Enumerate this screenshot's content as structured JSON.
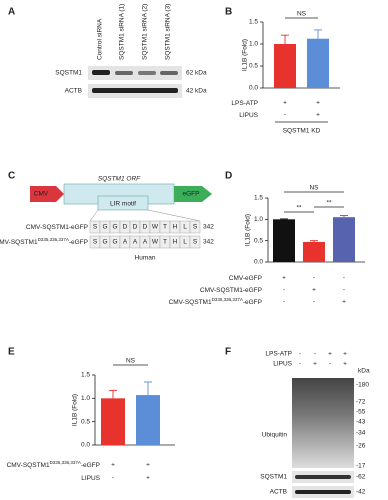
{
  "panel_a": {
    "letter": "A",
    "lanes": [
      "Control siRNA",
      "SQSTM1 siRNA (1)",
      "SQSTM1 siRNA (2)",
      "SQSTM1 siRNA (3)"
    ],
    "blots": [
      {
        "label": "SQSTM1",
        "size": "62 kDa"
      },
      {
        "label": "ACTB",
        "size": "42 kDa"
      }
    ]
  },
  "panel_c": {
    "letter": "C",
    "promoter": "CMV",
    "orf": "SQSTM1 ORF",
    "motif": "LIR motif",
    "tag": "eGFP",
    "sequences": [
      {
        "label": {
          "pre": "CMV-SQSTM1-eGFP",
          "sup": "",
          "post": ""
        },
        "residues": [
          "S",
          "G",
          "G",
          "D",
          "D",
          "D",
          "W",
          "T",
          "H",
          "L",
          "S"
        ],
        "end": "342"
      },
      {
        "label": {
          "pre": "CMV-SQSTM1",
          "sup": "D335,336,337A",
          "post": "-eGFP"
        },
        "residues": [
          "S",
          "G",
          "G",
          "A",
          "A",
          "A",
          "W",
          "T",
          "H",
          "L",
          "S"
        ],
        "end": "342"
      }
    ],
    "mutation_color": "#e8322d",
    "species": "Human"
  },
  "panel_f": {
    "letter": "F",
    "unit": "kDa",
    "header_rows": [
      {
        "label": "LPS-ATP",
        "marks": [
          "-",
          "-",
          "+",
          "+"
        ]
      },
      {
        "label": "LIPUS",
        "marks": [
          "-",
          "+",
          "-",
          "+"
        ]
      }
    ],
    "blots": [
      {
        "label": "Ubiquitin",
        "markers": [
          "-180",
          "-72",
          "-55",
          "-43",
          "-34",
          "-26",
          "-17"
        ]
      },
      {
        "label": "SQSTM1",
        "markers": [
          "-62"
        ]
      },
      {
        "label": "ACTB",
        "markers": [
          "-42"
        ]
      }
    ]
  },
  "chart_data": [
    {
      "type": "bar",
      "letter": "B",
      "y_label": "IL1B (Fold)",
      "ylim": [
        0,
        1.5
      ],
      "yticks": [
        {
          "value": 0,
          "label": "0.0"
        },
        {
          "value": 0.5,
          "label": "0.5"
        },
        {
          "value": 1,
          "label": "1.0"
        },
        {
          "value": 1.5,
          "label": "1.5"
        }
      ],
      "values": [
        1.0,
        1.12
      ],
      "errors": [
        0.2,
        0.2
      ],
      "colors": [
        "#e8322d",
        "#5b8ed6"
      ],
      "significance": [
        "NS"
      ],
      "rows": [
        {
          "label": {
            "pre": "LPS-ATP",
            "sup": "",
            "post": ""
          },
          "marks": [
            "+",
            "+"
          ]
        },
        {
          "label": {
            "pre": "LIPUS",
            "sup": "",
            "post": ""
          },
          "marks": [
            "-",
            "+"
          ]
        }
      ],
      "group_label": "SQSTM1 KD"
    },
    {
      "type": "bar",
      "letter": "D",
      "y_label": "IL1B (Fold)",
      "ylim": [
        0,
        1.5
      ],
      "yticks": [
        {
          "value": 0,
          "label": "0.0"
        },
        {
          "value": 0.5,
          "label": "0.5"
        },
        {
          "value": 1,
          "label": "1.0"
        },
        {
          "value": 1.5,
          "label": "1.5"
        }
      ],
      "values": [
        1.0,
        0.47,
        1.05
      ],
      "errors": [
        0.01,
        0.03,
        0.04
      ],
      "colors": [
        "#111111",
        "#e8322d",
        "#5863b0"
      ],
      "significance": [
        "**",
        "**",
        "NS"
      ],
      "rows": [
        {
          "label": {
            "pre": "CMV-eGFP",
            "sup": "",
            "post": ""
          },
          "marks": [
            "+",
            "-",
            "-"
          ]
        },
        {
          "label": {
            "pre": "CMV-SQSTM1-eGFP",
            "sup": "",
            "post": ""
          },
          "marks": [
            "-",
            "+",
            "-"
          ]
        },
        {
          "label": {
            "pre": "CMV-SQSTM1",
            "sup": "D335,336,337A",
            "post": "-eGFP"
          },
          "marks": [
            "-",
            "-",
            "+"
          ]
        }
      ]
    },
    {
      "type": "bar",
      "letter": "E",
      "y_label": "IL1B (Fold)",
      "ylim": [
        0,
        1.5
      ],
      "yticks": [
        {
          "value": 0,
          "label": "0.0"
        },
        {
          "value": 0.5,
          "label": "0.5"
        },
        {
          "value": 1,
          "label": "1.0"
        },
        {
          "value": 1.5,
          "label": "1.5"
        }
      ],
      "values": [
        1.0,
        1.07
      ],
      "errors": [
        0.17,
        0.28
      ],
      "colors": [
        "#e8322d",
        "#5b8ed6"
      ],
      "significance": [
        "NS"
      ],
      "rows": [
        {
          "label": {
            "pre": "CMV-SQSTM1",
            "sup": "D335,336,337A",
            "post": "-eGFP"
          },
          "marks": [
            "+",
            "+"
          ]
        },
        {
          "label": {
            "pre": "LIPUS",
            "sup": "",
            "post": ""
          },
          "marks": [
            "-",
            "+"
          ]
        }
      ]
    }
  ]
}
